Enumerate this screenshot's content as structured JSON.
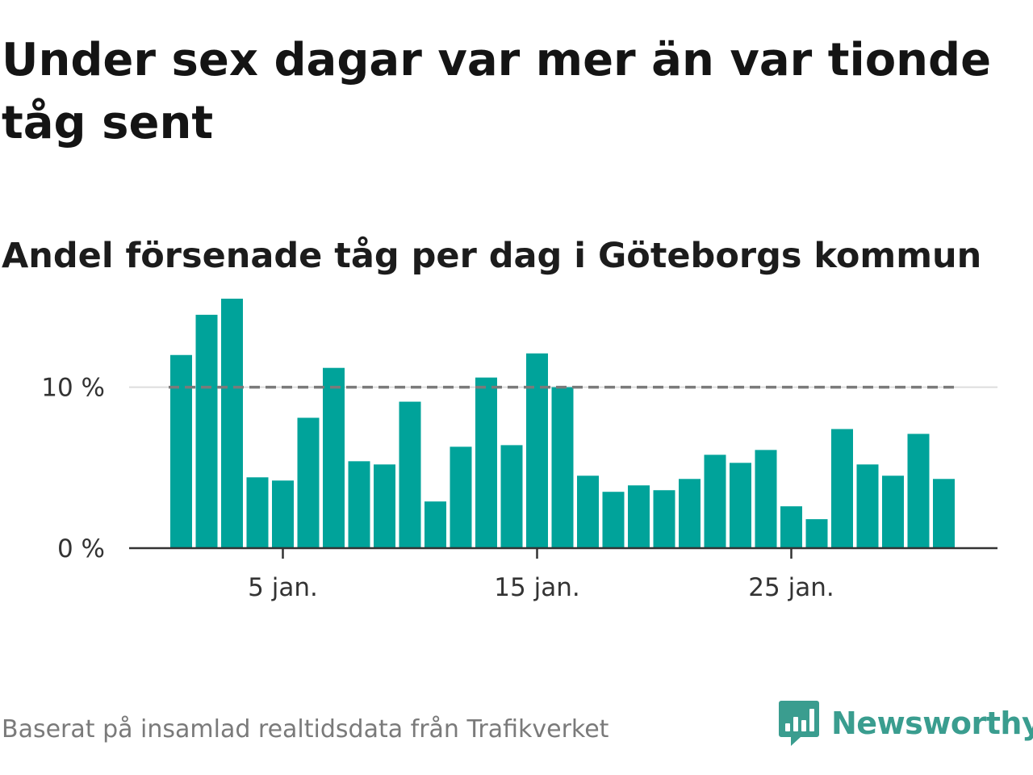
{
  "title": "Under sex dagar var mer än var tionde tåg sent",
  "subtitle": "Andel försenade tåg per dag i Göteborgs kommun",
  "footer": {
    "source": "Baserat på insamlad realtidsdata från Trafikverket",
    "brand": "Newsworthy",
    "brand_icon": "newsworthy-logo-icon"
  },
  "colors": {
    "bar": "#00A39A",
    "threshold": "#7a7a7a",
    "axis": "#333333",
    "grid": "#dddddd",
    "brand": "#3a9d8f"
  },
  "chart_data": {
    "type": "bar",
    "title": "Under sex dagar var mer än var tionde tåg sent",
    "subtitle": "Andel försenade tåg per dag i Göteborgs kommun",
    "x_unit": "day of January",
    "x": [
      1,
      2,
      3,
      4,
      5,
      6,
      7,
      8,
      9,
      10,
      11,
      12,
      13,
      14,
      15,
      16,
      17,
      18,
      19,
      20,
      21,
      22,
      23,
      24,
      25,
      26,
      27,
      28,
      29,
      30,
      31
    ],
    "values": [
      12.0,
      14.5,
      15.5,
      4.4,
      4.2,
      8.1,
      11.2,
      5.4,
      5.2,
      9.1,
      2.9,
      6.3,
      10.6,
      6.4,
      12.1,
      10.0,
      4.5,
      3.5,
      3.9,
      3.6,
      4.3,
      5.8,
      5.3,
      6.1,
      2.6,
      1.8,
      7.4,
      5.2,
      4.5,
      7.1,
      4.3
    ],
    "ylim": [
      0,
      16
    ],
    "y_unit": "%",
    "y_ticks": [
      {
        "value": 0,
        "label": "0 %"
      },
      {
        "value": 10,
        "label": "10 %"
      }
    ],
    "x_ticks": [
      {
        "value": 5,
        "label": "5 jan."
      },
      {
        "value": 15,
        "label": "15 jan."
      },
      {
        "value": 25,
        "label": "25 jan."
      }
    ],
    "threshold": {
      "value": 10,
      "style": "dashed"
    },
    "grid": true,
    "legend": "none"
  }
}
